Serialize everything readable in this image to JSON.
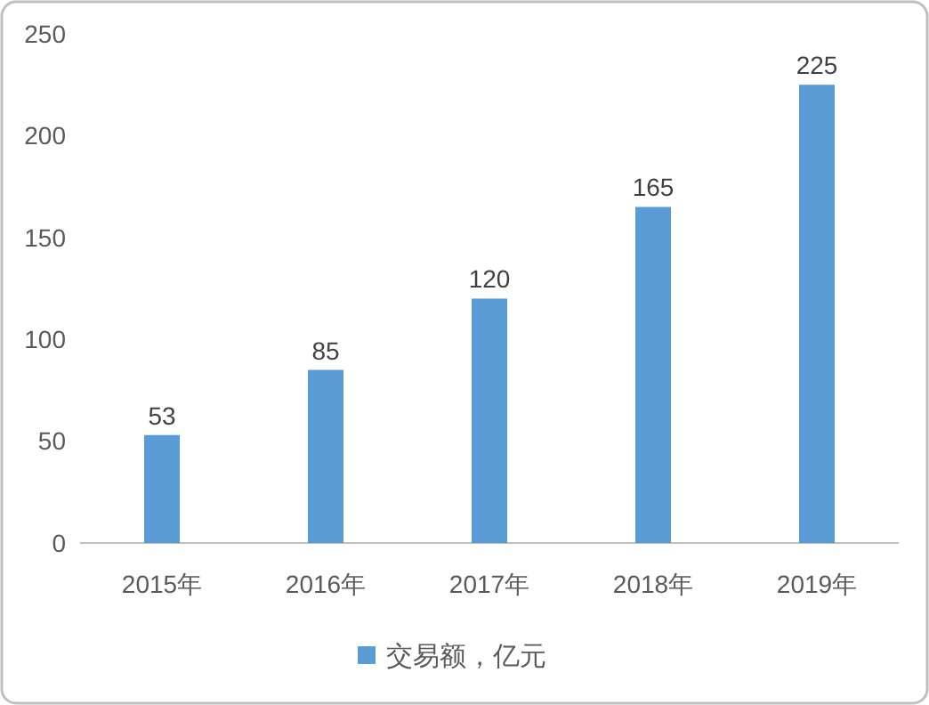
{
  "chart_data": {
    "type": "bar",
    "categories": [
      "2015年",
      "2016年",
      "2017年",
      "2018年",
      "2019年"
    ],
    "series": [
      {
        "name": "交易额，亿元",
        "color": "#5b9bd5",
        "values": [
          53,
          85,
          120,
          165,
          225
        ]
      }
    ],
    "ylim": [
      0,
      250
    ],
    "yticks": [
      0,
      50,
      100,
      150,
      200,
      250
    ],
    "grid": false,
    "legend": "bottom",
    "data_labels": true
  }
}
